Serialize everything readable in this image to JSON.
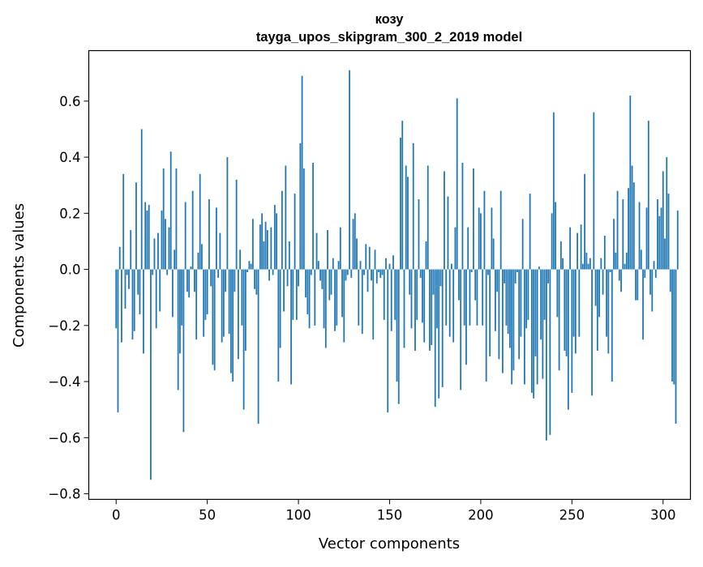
{
  "chart_data": {
    "type": "bar",
    "title": "козу",
    "subtitle": "tayga_upos_skipgram_300_2_2019 model",
    "xlabel": "Vector components",
    "ylabel": "Components values",
    "xlim": [
      -15,
      315
    ],
    "ylim": [
      -0.82,
      0.78
    ],
    "xticks": [
      0,
      50,
      100,
      150,
      200,
      250,
      300
    ],
    "yticks": [
      -0.8,
      -0.6,
      -0.4,
      -0.2,
      0.0,
      0.2,
      0.4,
      0.6
    ],
    "ytick_labels": [
      "−0.8",
      "−0.6",
      "−0.4",
      "−0.2",
      "0.0",
      "0.2",
      "0.4",
      "0.6"
    ],
    "bar_color": "#1f77b4",
    "grid": false,
    "values": [
      -0.21,
      -0.51,
      0.08,
      -0.26,
      0.34,
      -0.14,
      -0.02,
      -0.07,
      0.14,
      -0.25,
      -0.22,
      0.31,
      -0.09,
      -0.16,
      0.5,
      -0.3,
      0.24,
      0.21,
      0.23,
      -0.75,
      -0.02,
      0.11,
      -0.21,
      0.13,
      -0.15,
      0.21,
      0.36,
      0.18,
      -0.02,
      0.15,
      0.42,
      -0.17,
      0.07,
      0.36,
      -0.43,
      -0.3,
      -0.2,
      -0.58,
      0.24,
      -0.08,
      -0.1,
      0.01,
      0.28,
      -0.08,
      -0.25,
      0.06,
      0.34,
      0.09,
      -0.24,
      -0.18,
      -0.16,
      0.25,
      -0.06,
      -0.34,
      -0.36,
      0.22,
      -0.03,
      0.13,
      -0.26,
      -0.24,
      -0.08,
      0.4,
      -0.23,
      -0.37,
      -0.4,
      -0.08,
      0.32,
      -0.32,
      0.07,
      -0.2,
      -0.5,
      -0.29,
      -0.01,
      0.03,
      0.02,
      0.18,
      -0.07,
      -0.09,
      -0.55,
      0.16,
      0.2,
      0.1,
      0.17,
      0.14,
      -0.04,
      0.15,
      -0.02,
      0.23,
      0.2,
      -0.4,
      -0.28,
      0.28,
      -0.15,
      0.37,
      -0.06,
      0.1,
      -0.41,
      -0.18,
      0.27,
      -0.18,
      -0.06,
      0.45,
      0.69,
      0.36,
      -0.1,
      -0.16,
      -0.21,
      -0.02,
      0.38,
      -0.2,
      0.13,
      0.03,
      -0.04,
      -0.07,
      -0.21,
      -0.28,
      0.14,
      -0.11,
      -0.09,
      0.04,
      -0.22,
      -0.2,
      0.03,
      0.15,
      -0.17,
      -0.26,
      -0.04,
      -0.02,
      0.71,
      -0.03,
      0.18,
      0.2,
      0.11,
      -0.2,
      0.03,
      -0.23,
      -0.02,
      0.09,
      -0.08,
      0.08,
      -0.04,
      -0.25,
      0.07,
      -0.05,
      -0.01,
      -0.03,
      -0.02,
      -0.18,
      0.04,
      -0.51,
      0.02,
      -0.22,
      0.05,
      -0.18,
      -0.4,
      -0.48,
      0.47,
      0.53,
      -0.28,
      0.37,
      0.33,
      -0.09,
      -0.21,
      0.45,
      -0.29,
      -0.18,
      0.25,
      -0.03,
      -0.19,
      -0.26,
      0.1,
      0.37,
      -0.29,
      -0.27,
      -0.09,
      -0.49,
      -0.21,
      -0.46,
      -0.06,
      -0.42,
      0.35,
      -0.2,
      0.26,
      -0.24,
      0.02,
      -0.26,
      0.15,
      0.61,
      -0.11,
      -0.43,
      0.38,
      -0.2,
      -0.34,
      0.15,
      -0.2,
      -0.01,
      0.36,
      -0.11,
      -0.2,
      0.22,
      0.2,
      -0.2,
      0.28,
      -0.4,
      -0.02,
      -0.31,
      0.22,
      0.11,
      -0.22,
      -0.08,
      -0.32,
      0.28,
      -0.37,
      -0.05,
      -0.2,
      -0.23,
      -0.28,
      -0.41,
      -0.36,
      -0.05,
      -0.01,
      -0.32,
      -0.24,
      0.18,
      -0.41,
      -0.21,
      -0.18,
      0.27,
      -0.44,
      -0.46,
      -0.31,
      -0.41,
      0.01,
      -0.25,
      -0.39,
      -0.18,
      -0.61,
      -0.05,
      -0.59,
      0.2,
      0.56,
      0.24,
      -0.17,
      -0.36,
      0.1,
      0.04,
      -0.29,
      -0.31,
      -0.5,
      0.15,
      -0.44,
      -0.24,
      -0.3,
      0.13,
      -0.24,
      0.16,
      0.02,
      0.34,
      0.06,
      0.02,
      0.04,
      -0.45,
      0.56,
      -0.13,
      -0.29,
      -0.17,
      0.04,
      -0.09,
      0.12,
      -0.24,
      -0.3,
      -0.01,
      -0.4,
      0.18,
      0.06,
      0.28,
      -0.04,
      -0.08,
      0.25,
      0.02,
      0.06,
      0.29,
      0.62,
      0.37,
      0.31,
      -0.11,
      -0.11,
      0.24,
      0.07,
      -0.25,
      -0.03,
      0.22,
      0.53,
      -0.09,
      -0.15,
      0.03,
      -0.03,
      0.25,
      0.19,
      0.22,
      0.35,
      0.11,
      0.4,
      0.27,
      -0.08,
      -0.4,
      -0.41,
      -0.55,
      0.21
    ]
  }
}
